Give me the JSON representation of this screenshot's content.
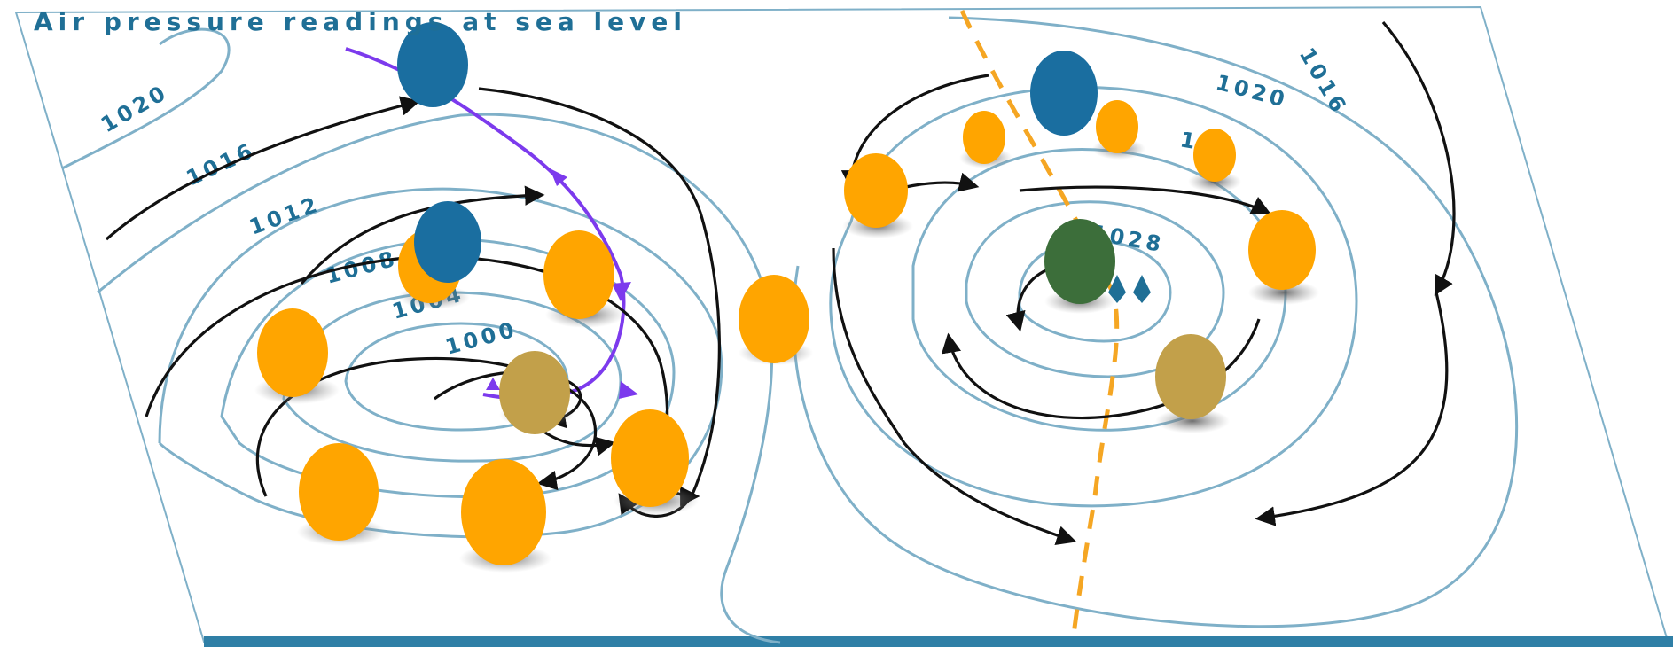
{
  "title": "Air pressure readings at sea level",
  "colors": {
    "isobar": "#7fb0c8",
    "label": "#1f6f96",
    "wind_arrow": "#111111",
    "cold_front": "#7c3aed",
    "ridge_line": "#f5a623",
    "blob_orange": "#ffa500",
    "blob_blue": "#1a6ea0",
    "blob_khaki": "#c2a04a",
    "blob_green": "#3c6e3a",
    "base_strip": "#2f7fa6"
  },
  "isobar_labels": {
    "l1020": "1020",
    "l1016": "1016",
    "l1012": "1012",
    "l1008": "1008",
    "l1004": "1004",
    "l1000": "1000",
    "r1028": "1028",
    "r1020": "1020",
    "r1024": "10",
    "r1016": "1016"
  },
  "icons": {
    "low_center": "low-pressure-center-icon",
    "high_center": "high-pressure-center-icon"
  }
}
